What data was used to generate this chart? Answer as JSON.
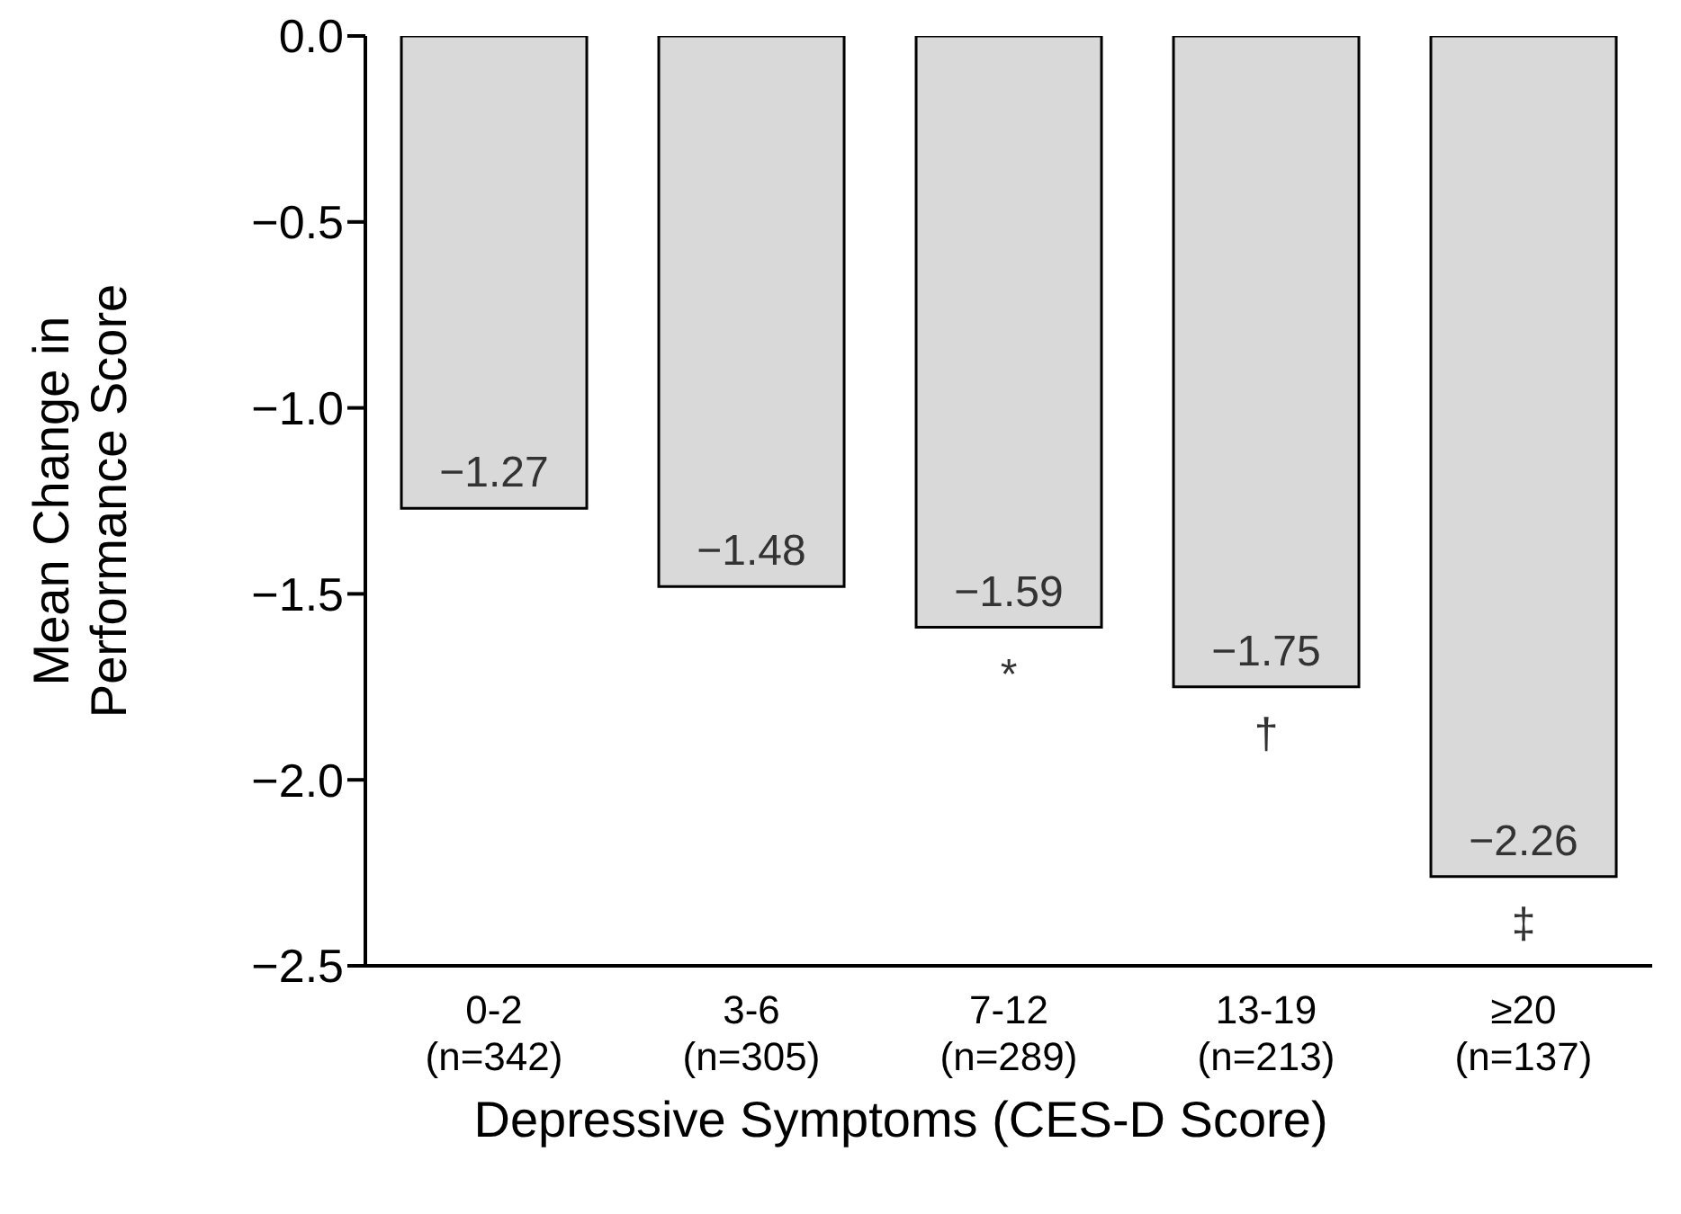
{
  "chart_data": {
    "type": "bar",
    "xlabel": "Depressive Symptoms (CES-D Score)",
    "ylabel": "Mean Change in\nPerformance Score",
    "categories": [
      "0-2\n(n=342)",
      "3-6\n(n=305)",
      "7-12\n(n=289)",
      "13-19\n(n=213)",
      "≥20\n(n=137)"
    ],
    "values": [
      -1.27,
      -1.48,
      -1.59,
      -1.75,
      -2.26
    ],
    "value_labels": [
      "−1.27",
      "−1.48",
      "−1.59",
      "−1.75",
      "−2.26"
    ],
    "color": "#d9d9d9",
    "ylim": [
      -2.5,
      0
    ],
    "yticks": [
      {
        "value": 0,
        "label": "0.0"
      },
      {
        "value": -0.5,
        "label": "−0.5"
      },
      {
        "value": -1,
        "label": "−1.0"
      },
      {
        "value": -1.5,
        "label": "−1.5"
      },
      {
        "value": -2,
        "label": "−2.0"
      },
      {
        "value": -2.5,
        "label": "−2.5"
      }
    ],
    "grid": false,
    "legend": false,
    "annotations": [
      {
        "text": "*",
        "x": "7-12\n(n=289)",
        "y": -1.59
      },
      {
        "text": "†",
        "x": "13-19\n(n=213)",
        "y": -1.75
      },
      {
        "text": "‡",
        "x": "≥20\n(n=137)",
        "y": -2.26
      }
    ]
  }
}
